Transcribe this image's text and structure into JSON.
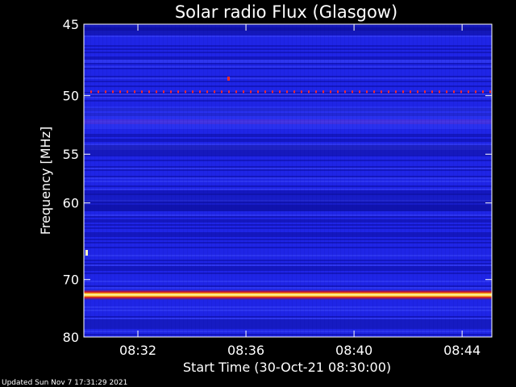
{
  "chart_data": {
    "type": "heatmap",
    "title": "Solar radio Flux (Glasgow)",
    "xlabel": "Start Time (30-Oct-21 08:30:00)",
    "ylabel": "Frequency [MHz]",
    "x_ticks": [
      "08:32",
      "08:36",
      "08:40",
      "08:44"
    ],
    "y_ticks": [
      45,
      50,
      55,
      60,
      70,
      80
    ],
    "x_range_minutes": [
      0,
      15.1
    ],
    "y_range": [
      45,
      80
    ],
    "y_scale": "reciprocal",
    "bright_lines_mhz": [
      72.4
    ],
    "dotted_lines_mhz": [
      49.7
    ],
    "footer": "Updated Sun Nov  7 17:31:29 2021"
  },
  "colors": {
    "background": "#000000",
    "spectrum_base": "#1f25e6",
    "spectrum_dark": "#0b0d9e",
    "emission_core": "#fff8c0",
    "emission_edge": "#ff3000",
    "dotted_marker": "#ff2a2a"
  }
}
